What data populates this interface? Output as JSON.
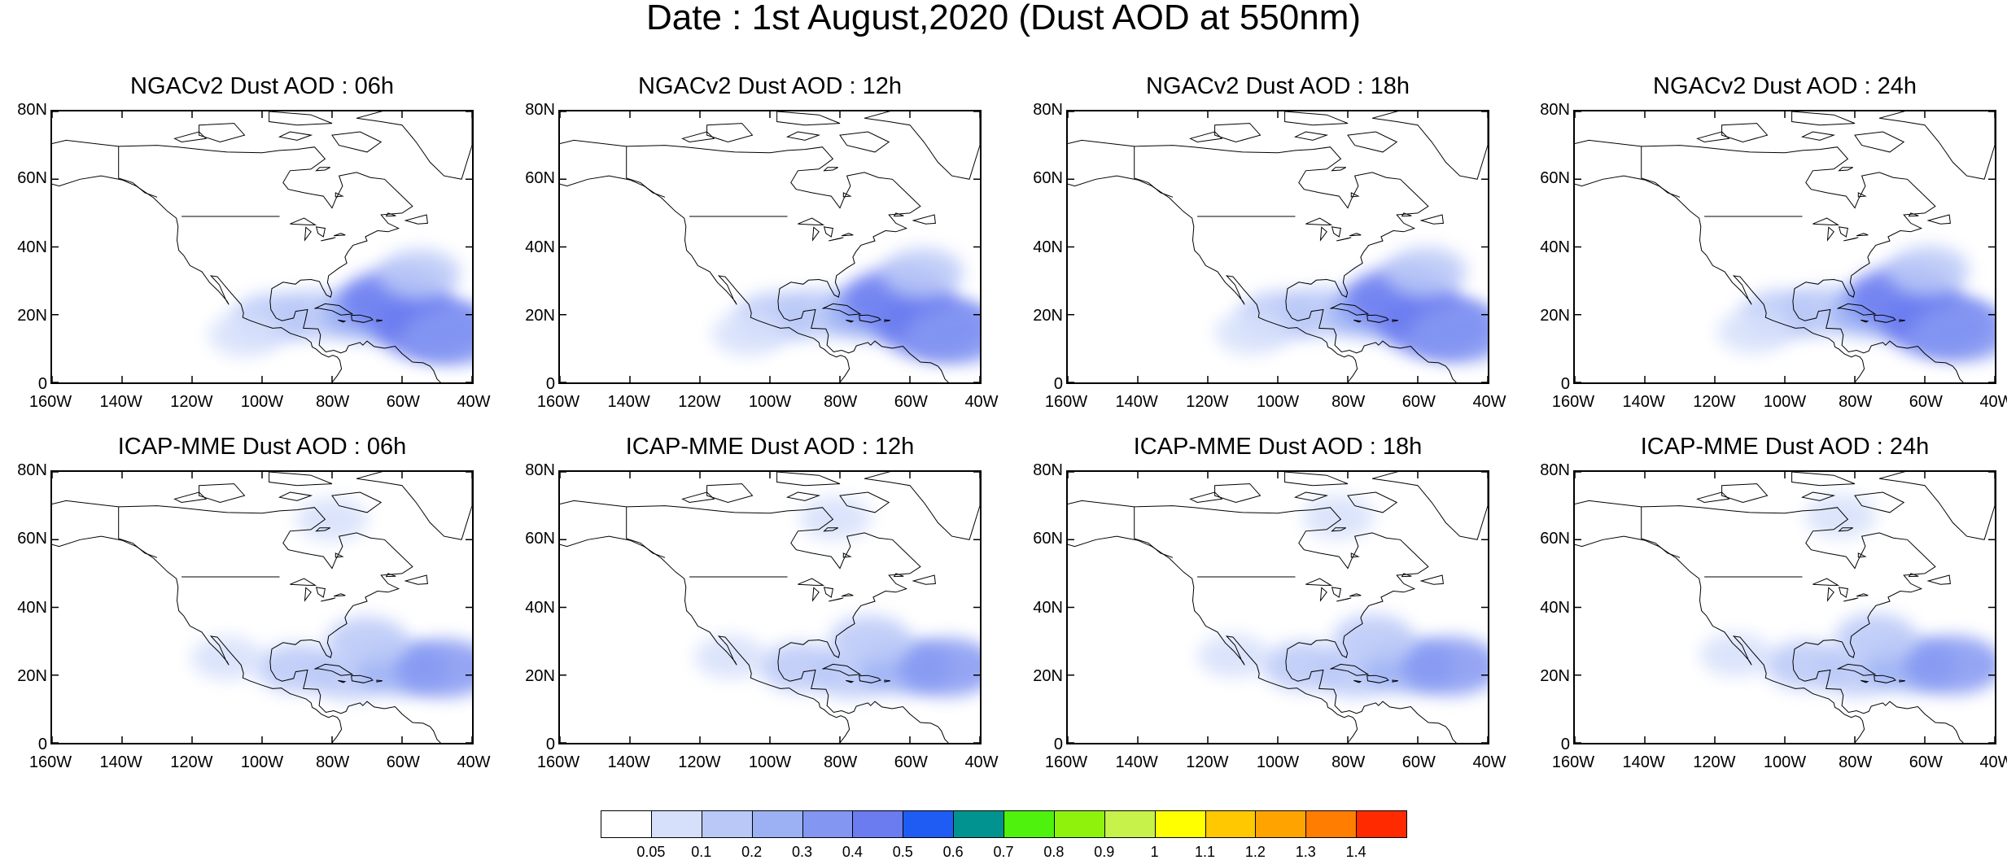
{
  "title": "Date : 1st August,2020 (Dust AOD at 550nm)",
  "panels": [
    {
      "title": "NGACv2 Dust AOD : 06h",
      "model": "ngac",
      "hour": 6
    },
    {
      "title": "NGACv2 Dust AOD : 12h",
      "model": "ngac",
      "hour": 12
    },
    {
      "title": "NGACv2 Dust AOD : 18h",
      "model": "ngac",
      "hour": 18
    },
    {
      "title": "NGACv2 Dust AOD : 24h",
      "model": "ngac",
      "hour": 24
    },
    {
      "title": "ICAP-MME Dust AOD : 06h",
      "model": "icap",
      "hour": 6
    },
    {
      "title": "ICAP-MME Dust AOD : 12h",
      "model": "icap",
      "hour": 12
    },
    {
      "title": "ICAP-MME Dust AOD : 18h",
      "model": "icap",
      "hour": 18
    },
    {
      "title": "ICAP-MME Dust AOD : 24h",
      "model": "icap",
      "hour": 24
    }
  ],
  "axes": {
    "lon_range": [
      -160,
      -40
    ],
    "lat_range": [
      0,
      80
    ],
    "lat_ticks": [
      "80N",
      "60N",
      "40N",
      "20N",
      "0"
    ],
    "lon_ticks": [
      "160W",
      "140W",
      "120W",
      "100W",
      "80W",
      "60W",
      "40W"
    ]
  },
  "colorbar": {
    "labels": [
      "0.05",
      "0.1",
      "0.2",
      "0.3",
      "0.4",
      "0.5",
      "0.6",
      "0.7",
      "0.8",
      "0.9",
      "1",
      "1.1",
      "1.2",
      "1.3",
      "1.4"
    ],
    "colors": [
      "#ffffff",
      "#d6e0fb",
      "#b9c8f7",
      "#9cb1f4",
      "#8396f2",
      "#6b7bf0",
      "#1f5cf3",
      "#00938f",
      "#4ff20d",
      "#8ef20d",
      "#c6f24a",
      "#ffff00",
      "#ffc800",
      "#ffa300",
      "#ff7d00",
      "#ff2a00"
    ]
  },
  "map_data": {
    "ngac": [
      {
        "lon": -97,
        "lat": 19,
        "level": 2
      },
      {
        "lon": -85,
        "lat": 20,
        "level": 2
      },
      {
        "lon": -70,
        "lat": 20,
        "level": 3
      },
      {
        "lon": -62,
        "lat": 24,
        "level": 5
      },
      {
        "lon": -52,
        "lat": 16,
        "level": 5
      },
      {
        "lon": -45,
        "lat": 14,
        "level": 4
      },
      {
        "lon": -55,
        "lat": 32,
        "level": 2
      },
      {
        "lon": -105,
        "lat": 14,
        "level": 1
      }
    ],
    "icap": [
      {
        "lon": -110,
        "lat": 25,
        "level": 1
      },
      {
        "lon": -90,
        "lat": 22,
        "level": 2
      },
      {
        "lon": -75,
        "lat": 20,
        "level": 2
      },
      {
        "lon": -60,
        "lat": 22,
        "level": 3
      },
      {
        "lon": -48,
        "lat": 22,
        "level": 4
      },
      {
        "lon": -80,
        "lat": 66,
        "level": 1
      },
      {
        "lon": -70,
        "lat": 30,
        "level": 2
      }
    ]
  }
}
